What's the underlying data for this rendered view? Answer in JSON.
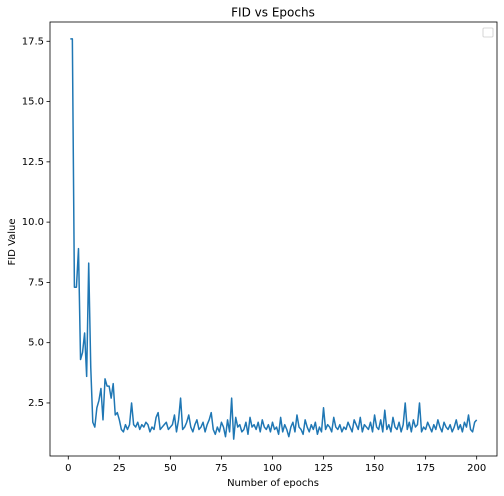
{
  "chart_data": {
    "type": "line",
    "title": "FID vs Epochs",
    "x_label": "Number of epochs",
    "y_label": "FID Value",
    "color": "#1f77b4",
    "x": [
      1,
      2,
      3,
      4,
      5,
      6,
      7,
      8,
      9,
      10,
      11,
      12,
      13,
      14,
      15,
      16,
      17,
      18,
      19,
      20,
      21,
      22,
      23,
      24,
      25,
      26,
      27,
      28,
      29,
      30,
      31,
      32,
      33,
      34,
      35,
      36,
      37,
      38,
      39,
      40,
      41,
      42,
      43,
      44,
      45,
      46,
      47,
      48,
      49,
      50,
      51,
      52,
      53,
      54,
      55,
      56,
      57,
      58,
      59,
      60,
      61,
      62,
      63,
      64,
      65,
      66,
      67,
      68,
      69,
      70,
      71,
      72,
      73,
      74,
      75,
      76,
      77,
      78,
      79,
      80,
      81,
      82,
      83,
      84,
      85,
      86,
      87,
      88,
      89,
      90,
      91,
      92,
      93,
      94,
      95,
      96,
      97,
      98,
      99,
      100,
      101,
      102,
      103,
      104,
      105,
      106,
      107,
      108,
      109,
      110,
      111,
      112,
      113,
      114,
      115,
      116,
      117,
      118,
      119,
      120,
      121,
      122,
      123,
      124,
      125,
      126,
      127,
      128,
      129,
      130,
      131,
      132,
      133,
      134,
      135,
      136,
      137,
      138,
      139,
      140,
      141,
      142,
      143,
      144,
      145,
      146,
      147,
      148,
      149,
      150,
      151,
      152,
      153,
      154,
      155,
      156,
      157,
      158,
      159,
      160,
      161,
      162,
      163,
      164,
      165,
      166,
      167,
      168,
      169,
      170,
      171,
      172,
      173,
      174,
      175,
      176,
      177,
      178,
      179,
      180,
      181,
      182,
      183,
      184,
      185,
      186,
      187,
      188,
      189,
      190,
      191,
      192,
      193,
      194,
      195,
      196,
      197,
      198,
      199,
      200
    ],
    "values": [
      17.6,
      17.6,
      7.3,
      7.3,
      8.9,
      4.3,
      4.6,
      5.4,
      3.6,
      8.3,
      4.0,
      1.7,
      1.5,
      2.3,
      2.6,
      3.1,
      1.8,
      3.5,
      3.2,
      3.2,
      2.7,
      3.3,
      2.0,
      2.1,
      1.8,
      1.4,
      1.3,
      1.6,
      1.4,
      1.6,
      2.5,
      1.6,
      1.5,
      1.7,
      1.4,
      1.6,
      1.5,
      1.7,
      1.6,
      1.3,
      1.5,
      1.4,
      1.9,
      2.1,
      1.4,
      1.5,
      1.6,
      1.7,
      1.4,
      1.5,
      1.6,
      2.0,
      1.3,
      1.8,
      2.7,
      1.4,
      1.5,
      1.7,
      2.0,
      1.5,
      1.3,
      1.6,
      1.8,
      1.4,
      1.5,
      1.7,
      1.3,
      1.6,
      1.8,
      2.1,
      1.4,
      1.2,
      1.5,
      1.3,
      1.7,
      1.5,
      1.1,
      1.8,
      1.3,
      2.7,
      1.0,
      1.9,
      1.5,
      1.6,
      1.3,
      1.4,
      1.7,
      1.2,
      1.9,
      1.5,
      1.6,
      1.4,
      1.7,
      1.3,
      1.8,
      1.5,
      1.4,
      1.6,
      1.3,
      1.7,
      1.4,
      1.5,
      1.2,
      1.9,
      1.3,
      1.6,
      1.4,
      1.1,
      1.5,
      1.7,
      1.3,
      2.0,
      1.5,
      1.4,
      1.2,
      1.8,
      1.5,
      1.3,
      1.6,
      1.4,
      1.7,
      1.2,
      1.5,
      1.3,
      2.3,
      1.4,
      1.6,
      1.5,
      1.3,
      1.9,
      1.5,
      1.4,
      1.6,
      1.3,
      1.5,
      1.4,
      1.7,
      1.5,
      1.3,
      1.8,
      1.6,
      1.4,
      1.9,
      1.3,
      1.6,
      1.5,
      1.4,
      1.7,
      1.3,
      2.0,
      1.5,
      1.4,
      1.8,
      1.3,
      2.2,
      1.4,
      1.6,
      1.3,
      1.9,
      1.5,
      1.4,
      1.7,
      1.3,
      1.6,
      2.5,
      1.4,
      1.7,
      1.3,
      1.8,
      1.5,
      1.6,
      2.5,
      1.3,
      1.5,
      1.4,
      1.7,
      1.5,
      1.3,
      1.6,
      1.4,
      1.8,
      1.5,
      1.3,
      1.7,
      1.5,
      1.4,
      1.6,
      1.3,
      1.5,
      1.8,
      1.4,
      1.6,
      1.3,
      1.7,
      1.5,
      2.0,
      1.4,
      1.3,
      1.7,
      1.8
    ],
    "xlim": [
      -8.95,
      209.95
    ],
    "xticks": [
      0,
      25,
      50,
      75,
      100,
      125,
      150,
      175,
      200
    ],
    "ylim": [
      0.3,
      18.3
    ],
    "yticks": [
      2.5,
      {
        "value": 5,
        "label": "5.0"
      },
      7.5,
      {
        "value": 10,
        "label": "10.0"
      },
      12.5,
      {
        "value": 15,
        "label": "15.0"
      },
      17.5
    ]
  }
}
